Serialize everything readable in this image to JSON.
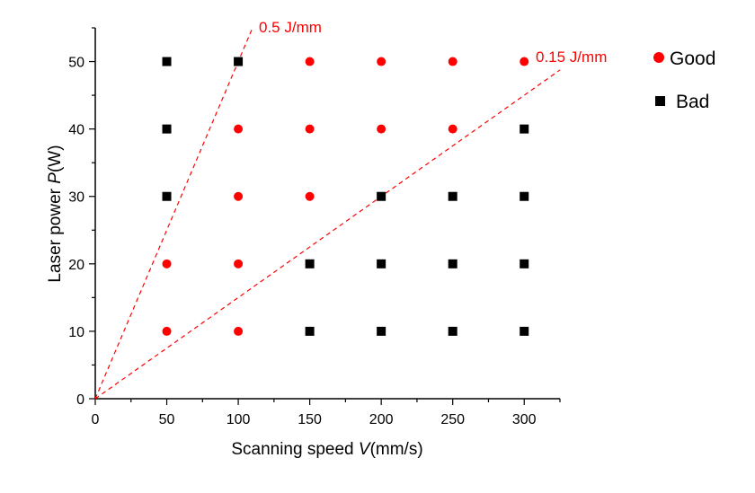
{
  "chart_data": {
    "type": "scatter",
    "xlabel_parts": [
      "Scanning speed ",
      "V",
      "(mm/s)"
    ],
    "ylabel_parts": [
      "Laser power ",
      "P",
      "(W)"
    ],
    "xlim": [
      0,
      325
    ],
    "ylim": [
      0,
      55
    ],
    "xticks": [
      0,
      50,
      100,
      150,
      200,
      250,
      300
    ],
    "yticks": [
      0,
      10,
      20,
      30,
      40,
      50
    ],
    "x_minor_step": 25,
    "y_minor_step": 5,
    "grid": false,
    "legend_position": "right-top",
    "series": [
      {
        "name": "Good",
        "marker": "circle",
        "color": "#ff0000",
        "points": [
          [
            150,
            50
          ],
          [
            200,
            50
          ],
          [
            250,
            50
          ],
          [
            300,
            50
          ],
          [
            100,
            40
          ],
          [
            150,
            40
          ],
          [
            200,
            40
          ],
          [
            250,
            40
          ],
          [
            100,
            30
          ],
          [
            150,
            30
          ],
          [
            50,
            20
          ],
          [
            100,
            20
          ],
          [
            50,
            10
          ],
          [
            100,
            10
          ]
        ]
      },
      {
        "name": "Bad",
        "marker": "square",
        "color": "#000000",
        "points": [
          [
            50,
            50
          ],
          [
            100,
            50
          ],
          [
            50,
            40
          ],
          [
            300,
            40
          ],
          [
            50,
            30
          ],
          [
            200,
            30
          ],
          [
            250,
            30
          ],
          [
            300,
            30
          ],
          [
            150,
            20
          ],
          [
            200,
            20
          ],
          [
            250,
            20
          ],
          [
            300,
            20
          ],
          [
            150,
            10
          ],
          [
            200,
            10
          ],
          [
            250,
            10
          ],
          [
            300,
            10
          ]
        ]
      }
    ],
    "reference_lines": [
      {
        "label": "0.5 J/mm",
        "slope": 0.5,
        "x_end": 110,
        "color": "#ff0000",
        "style": "dashed"
      },
      {
        "label": "0.15 J/mm",
        "slope": 0.15,
        "x_end": 325,
        "color": "#ff0000",
        "style": "dashed"
      }
    ]
  }
}
